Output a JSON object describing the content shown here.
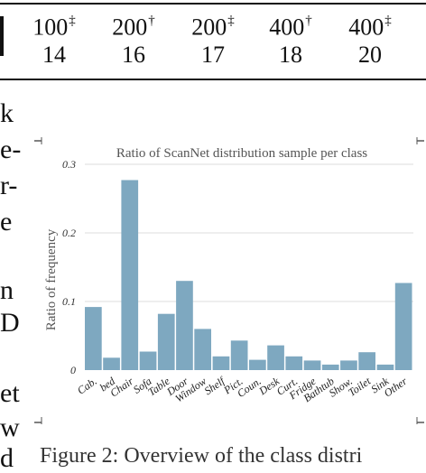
{
  "table": {
    "columns": [
      {
        "label": "100",
        "mark": "‡",
        "value": "14"
      },
      {
        "label": "200",
        "mark": "†",
        "value": "16"
      },
      {
        "label": "200",
        "mark": "‡",
        "value": "17"
      },
      {
        "label": "400",
        "mark": "†",
        "value": "18"
      },
      {
        "label": "400",
        "mark": "‡",
        "value": "20"
      }
    ]
  },
  "margin_text": [
    "k",
    "e-",
    "r-",
    "e",
    "n",
    "D",
    "et",
    "w",
    "d"
  ],
  "caption": "Figure 2: Overview of the class distri",
  "chart_data": {
    "type": "bar",
    "title": "Ratio of ScanNet distribution sample per class",
    "xlabel": "",
    "ylabel": "Ratio of frequency",
    "ylim": [
      0,
      0.3
    ],
    "yticks": [
      "0",
      "0.1",
      "0.2",
      "0.3"
    ],
    "grid": true,
    "categories": [
      "Cab.",
      "bed",
      "Chair",
      "Sofa",
      "Table",
      "Door",
      "Window",
      "Shelf",
      "Pict.",
      "Coun.",
      "Desk",
      "Curt.",
      "Fridge",
      "Bathtub",
      "Show.",
      "Toilet",
      "Sink",
      "Other"
    ],
    "values": [
      0.092,
      0.018,
      0.277,
      0.027,
      0.082,
      0.13,
      0.06,
      0.02,
      0.043,
      0.015,
      0.036,
      0.02,
      0.014,
      0.008,
      0.014,
      0.026,
      0.008,
      0.127
    ],
    "colors": {
      "bar": "#7ea8c0",
      "grid": "#dcdcdc"
    }
  }
}
